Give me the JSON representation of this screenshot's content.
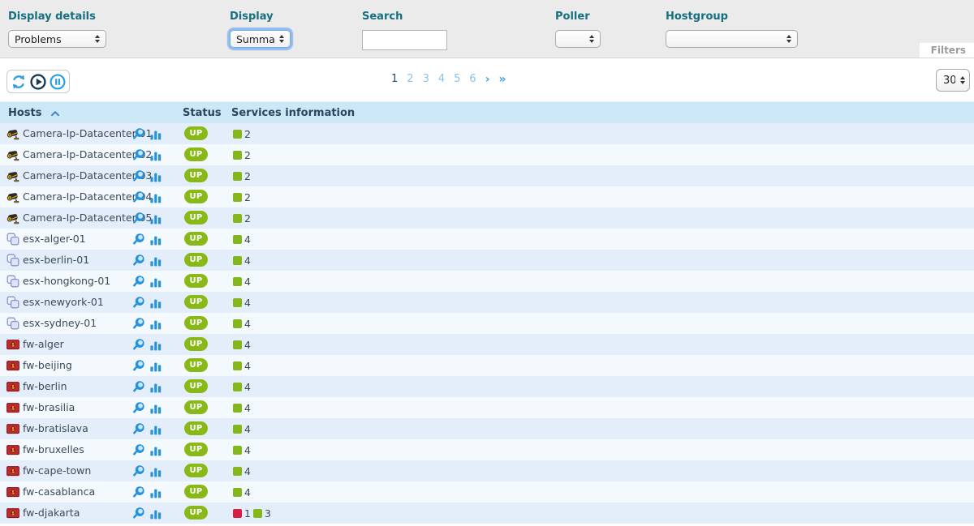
{
  "filter_bar": {
    "display_details": {
      "label": "Display details",
      "value": "Problems"
    },
    "display": {
      "label": "Display",
      "value": "Summary"
    },
    "search": {
      "label": "Search",
      "value": ""
    },
    "poller": {
      "label": "Poller",
      "value": ""
    },
    "hostgroup": {
      "label": "Hostgroup",
      "value": ""
    },
    "filters_toggle": "Filters"
  },
  "toolbar": {
    "pagination": {
      "pages": [
        "1",
        "2",
        "3",
        "4",
        "5",
        "6"
      ],
      "current_page": "1",
      "next_symbol": "›",
      "last_symbol": "»"
    },
    "page_size": "30"
  },
  "table": {
    "header": {
      "hosts": "Hosts",
      "status": "Status",
      "services": "Services information"
    },
    "rows": [
      {
        "name": "Camera-Ip-Datacenter-01",
        "type": "camera",
        "status": "UP",
        "services": [
          {
            "state": "ok",
            "count": "2"
          }
        ]
      },
      {
        "name": "Camera-Ip-Datacenter-02",
        "type": "camera",
        "status": "UP",
        "services": [
          {
            "state": "ok",
            "count": "2"
          }
        ]
      },
      {
        "name": "Camera-Ip-Datacenter-03",
        "type": "camera",
        "status": "UP",
        "services": [
          {
            "state": "ok",
            "count": "2"
          }
        ]
      },
      {
        "name": "Camera-Ip-Datacenter-04",
        "type": "camera",
        "status": "UP",
        "services": [
          {
            "state": "ok",
            "count": "2"
          }
        ]
      },
      {
        "name": "Camera-Ip-Datacenter-05",
        "type": "camera",
        "status": "UP",
        "services": [
          {
            "state": "ok",
            "count": "2"
          }
        ]
      },
      {
        "name": "esx-alger-01",
        "type": "esx",
        "status": "UP",
        "services": [
          {
            "state": "ok",
            "count": "4"
          }
        ]
      },
      {
        "name": "esx-berlin-01",
        "type": "esx",
        "status": "UP",
        "services": [
          {
            "state": "ok",
            "count": "4"
          }
        ]
      },
      {
        "name": "esx-hongkong-01",
        "type": "esx",
        "status": "UP",
        "services": [
          {
            "state": "ok",
            "count": "4"
          }
        ]
      },
      {
        "name": "esx-newyork-01",
        "type": "esx",
        "status": "UP",
        "services": [
          {
            "state": "ok",
            "count": "4"
          }
        ]
      },
      {
        "name": "esx-sydney-01",
        "type": "esx",
        "status": "UP",
        "services": [
          {
            "state": "ok",
            "count": "4"
          }
        ]
      },
      {
        "name": "fw-alger",
        "type": "firewall",
        "status": "UP",
        "services": [
          {
            "state": "ok",
            "count": "4"
          }
        ]
      },
      {
        "name": "fw-beijing",
        "type": "firewall",
        "status": "UP",
        "services": [
          {
            "state": "ok",
            "count": "4"
          }
        ]
      },
      {
        "name": "fw-berlin",
        "type": "firewall",
        "status": "UP",
        "services": [
          {
            "state": "ok",
            "count": "4"
          }
        ]
      },
      {
        "name": "fw-brasilia",
        "type": "firewall",
        "status": "UP",
        "services": [
          {
            "state": "ok",
            "count": "4"
          }
        ]
      },
      {
        "name": "fw-bratislava",
        "type": "firewall",
        "status": "UP",
        "services": [
          {
            "state": "ok",
            "count": "4"
          }
        ]
      },
      {
        "name": "fw-bruxelles",
        "type": "firewall",
        "status": "UP",
        "services": [
          {
            "state": "ok",
            "count": "4"
          }
        ]
      },
      {
        "name": "fw-cape-town",
        "type": "firewall",
        "status": "UP",
        "services": [
          {
            "state": "ok",
            "count": "4"
          }
        ]
      },
      {
        "name": "fw-casablanca",
        "type": "firewall",
        "status": "UP",
        "services": [
          {
            "state": "ok",
            "count": "4"
          }
        ]
      },
      {
        "name": "fw-djakarta",
        "type": "firewall",
        "status": "UP",
        "services": [
          {
            "state": "critical",
            "count": "1"
          },
          {
            "state": "ok",
            "count": "3"
          }
        ]
      }
    ]
  },
  "icons": {
    "refresh": "circular-arrows",
    "play": "play-in-circle",
    "pause": "pause-in-circle",
    "view_details": "magnifier",
    "graph": "bar-chart",
    "sort_asc": "chevron-up",
    "select_stepper": "up-down-triangles",
    "host_camera": "cctv-camera",
    "host_esx": "stacked-layers",
    "host_firewall": "brick-wall-flame"
  },
  "colors": {
    "label_teal": "#166f7e",
    "header_navy": "#2a455e",
    "accent_blue": "#2492dc",
    "table_header_bg": "#cce8f6",
    "row_odd_bg": "#e4eefb",
    "row_even_bg": "#f4f9fe",
    "status_up_green": "#88b917",
    "service_ok_green": "#84b719",
    "service_critical_red": "#d81e41",
    "filter_bar_gray": "#ebebeb"
  }
}
